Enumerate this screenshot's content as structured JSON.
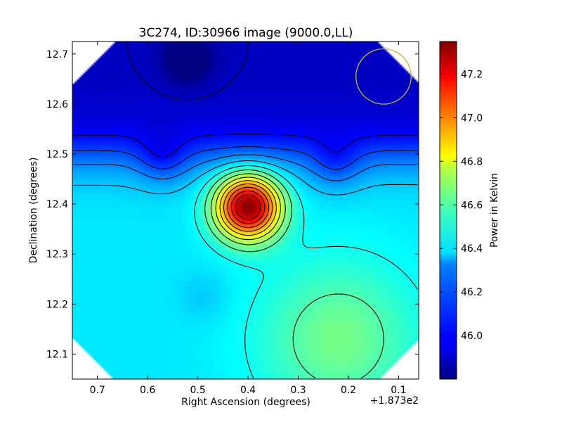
{
  "chart_data": {
    "type": "heatmap",
    "title": "3C274, ID:30966 image (9000.0,LL)",
    "xlabel": "Right Ascension (degrees)",
    "ylabel": "Declination (degrees)",
    "x_offset_label": "+1.873e2",
    "x_ticks": [
      {
        "value": 0.7,
        "label": "0.7"
      },
      {
        "value": 0.6,
        "label": "0.6"
      },
      {
        "value": 0.5,
        "label": "0.5"
      },
      {
        "value": 0.4,
        "label": "0.4"
      },
      {
        "value": 0.3,
        "label": "0.3"
      },
      {
        "value": 0.2,
        "label": "0.2"
      },
      {
        "value": 0.1,
        "label": "0.1"
      }
    ],
    "y_ticks": [
      {
        "value": 12.1,
        "label": "12.1"
      },
      {
        "value": 12.2,
        "label": "12.2"
      },
      {
        "value": 12.3,
        "label": "12.3"
      },
      {
        "value": 12.4,
        "label": "12.4"
      },
      {
        "value": 12.5,
        "label": "12.5"
      },
      {
        "value": 12.6,
        "label": "12.6"
      },
      {
        "value": 12.7,
        "label": "12.7"
      }
    ],
    "xlim": [
      0.75,
      0.06
    ],
    "ylim": [
      12.05,
      12.725
    ],
    "colorbar": {
      "label": "Power in Kelvin",
      "range": [
        45.8,
        47.35
      ],
      "colormap": "jet",
      "ticks": [
        {
          "value": 46.0,
          "label": "46.0"
        },
        {
          "value": 46.2,
          "label": "46.2"
        },
        {
          "value": 46.4,
          "label": "46.4"
        },
        {
          "value": 46.6,
          "label": "46.6"
        },
        {
          "value": 46.8,
          "label": "46.8"
        },
        {
          "value": 47.0,
          "label": "47.0"
        },
        {
          "value": 47.2,
          "label": "47.2"
        }
      ]
    },
    "background_level": 46.35,
    "features": [
      {
        "kind": "peak",
        "ra": 0.4,
        "dec": 12.395,
        "value": 47.35
      },
      {
        "kind": "trough",
        "ra": 0.52,
        "dec": 12.69,
        "value": 45.85
      },
      {
        "kind": "trough",
        "ra": 0.57,
        "dec": 12.49,
        "value": 45.92
      },
      {
        "kind": "trough",
        "ra": 0.225,
        "dec": 12.48,
        "value": 45.95
      },
      {
        "kind": "trough",
        "ra": 0.49,
        "dec": 12.215,
        "value": 46.2
      },
      {
        "kind": "plateau",
        "ra": 0.22,
        "dec": 12.13,
        "value": 46.56
      }
    ],
    "beam_circle": {
      "ra": 0.13,
      "dec": 12.655,
      "radius_deg": 0.055,
      "color": "#c8b820"
    },
    "contour_color": "#000000"
  }
}
